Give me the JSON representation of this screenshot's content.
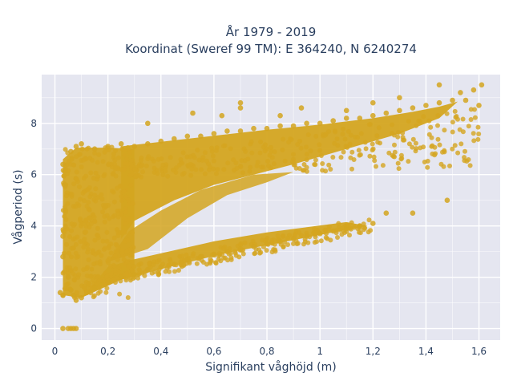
{
  "chart_data": {
    "type": "scatter",
    "title": "År 1979 - 2019",
    "subtitle": "Koordinat (Sweref 99 TM): E 364240, N 6240274",
    "xlabel": "Signifikant våghöjd (m)",
    "ylabel": "Vågperiod (s)",
    "xlim": [
      -0.05,
      1.68
    ],
    "ylim": [
      -0.45,
      9.9
    ],
    "x_ticks": [
      0,
      0.2,
      0.4,
      0.6,
      0.8,
      1,
      1.2,
      1.4,
      1.6
    ],
    "x_tick_labels": [
      "0",
      "0,2",
      "0,4",
      "0,6",
      "0,8",
      "1",
      "1,2",
      "1,4",
      "1,6"
    ],
    "y_ticks": [
      0,
      2,
      4,
      6,
      8
    ],
    "y_tick_labels": [
      "0",
      "2",
      "4",
      "6",
      "8"
    ],
    "grid": true,
    "marker_color": "#d4a520",
    "plot_bg": "#e5e6f0",
    "series": [
      {
        "points": [
          [
            0.06,
            6.9
          ],
          [
            0.08,
            7.1
          ],
          [
            0.1,
            7.2
          ],
          [
            0.15,
            7.0
          ],
          [
            0.2,
            7.1
          ],
          [
            0.25,
            7.2
          ],
          [
            0.3,
            7.1
          ],
          [
            0.35,
            7.2
          ],
          [
            0.4,
            7.3
          ],
          [
            0.45,
            7.4
          ],
          [
            0.5,
            7.5
          ],
          [
            0.55,
            7.5
          ],
          [
            0.6,
            7.6
          ],
          [
            0.65,
            7.7
          ],
          [
            0.7,
            7.7
          ],
          [
            0.75,
            7.8
          ],
          [
            0.8,
            7.8
          ],
          [
            0.85,
            7.9
          ],
          [
            0.9,
            7.9
          ],
          [
            0.95,
            8.0
          ],
          [
            1.0,
            8.0
          ],
          [
            1.05,
            8.1
          ],
          [
            1.1,
            8.2
          ],
          [
            1.15,
            8.2
          ],
          [
            1.2,
            8.3
          ],
          [
            1.25,
            8.4
          ],
          [
            1.3,
            8.5
          ],
          [
            1.35,
            8.6
          ],
          [
            1.4,
            8.7
          ],
          [
            1.45,
            8.8
          ],
          [
            1.5,
            8.9
          ],
          [
            1.55,
            8.9
          ],
          [
            1.6,
            8.7
          ],
          [
            0.35,
            8.0
          ],
          [
            0.52,
            8.4
          ],
          [
            0.63,
            8.3
          ],
          [
            0.7,
            8.6
          ],
          [
            0.85,
            8.3
          ],
          [
            0.93,
            8.6
          ],
          [
            1.1,
            8.5
          ],
          [
            1.2,
            8.8
          ],
          [
            1.3,
            9.0
          ],
          [
            1.45,
            9.5
          ],
          [
            1.53,
            9.2
          ],
          [
            1.58,
            9.3
          ],
          [
            1.61,
            9.5
          ],
          [
            0.7,
            8.8
          ],
          [
            1.48,
            5.0
          ],
          [
            1.35,
            4.5
          ],
          [
            1.25,
            4.5
          ],
          [
            1.15,
            4.0
          ],
          [
            0.05,
            2.0
          ],
          [
            0.06,
            1.5
          ],
          [
            0.07,
            1.3
          ],
          [
            0.08,
            1.1
          ],
          [
            0.1,
            1.2
          ],
          [
            0.12,
            1.4
          ],
          [
            0.15,
            1.6
          ],
          [
            0.2,
            1.8
          ],
          [
            0.25,
            2.0
          ],
          [
            0.3,
            2.1
          ],
          [
            0.35,
            2.3
          ],
          [
            0.4,
            2.4
          ],
          [
            0.45,
            2.5
          ],
          [
            0.5,
            2.7
          ],
          [
            0.55,
            2.8
          ],
          [
            0.6,
            2.9
          ],
          [
            0.65,
            3.0
          ],
          [
            0.7,
            3.1
          ],
          [
            0.75,
            3.2
          ],
          [
            0.8,
            3.3
          ],
          [
            0.85,
            3.4
          ],
          [
            0.9,
            3.5
          ],
          [
            0.95,
            3.6
          ],
          [
            1.0,
            3.7
          ],
          [
            1.05,
            3.8
          ],
          [
            1.1,
            3.9
          ],
          [
            1.15,
            4.0
          ],
          [
            1.2,
            4.1
          ],
          [
            0.03,
            6.4
          ],
          [
            0.04,
            5.6
          ],
          [
            0.04,
            4.6
          ],
          [
            0.03,
            3.6
          ],
          [
            0.03,
            2.8
          ],
          [
            0.02,
            1.4
          ],
          [
            0.03,
            1.3
          ],
          [
            0.04,
            6.2
          ],
          [
            0.03,
            0.0
          ],
          [
            0.05,
            0.0
          ],
          [
            0.06,
            0.0
          ],
          [
            0.07,
            0.0
          ],
          [
            0.08,
            0.0
          ]
        ]
      }
    ]
  }
}
